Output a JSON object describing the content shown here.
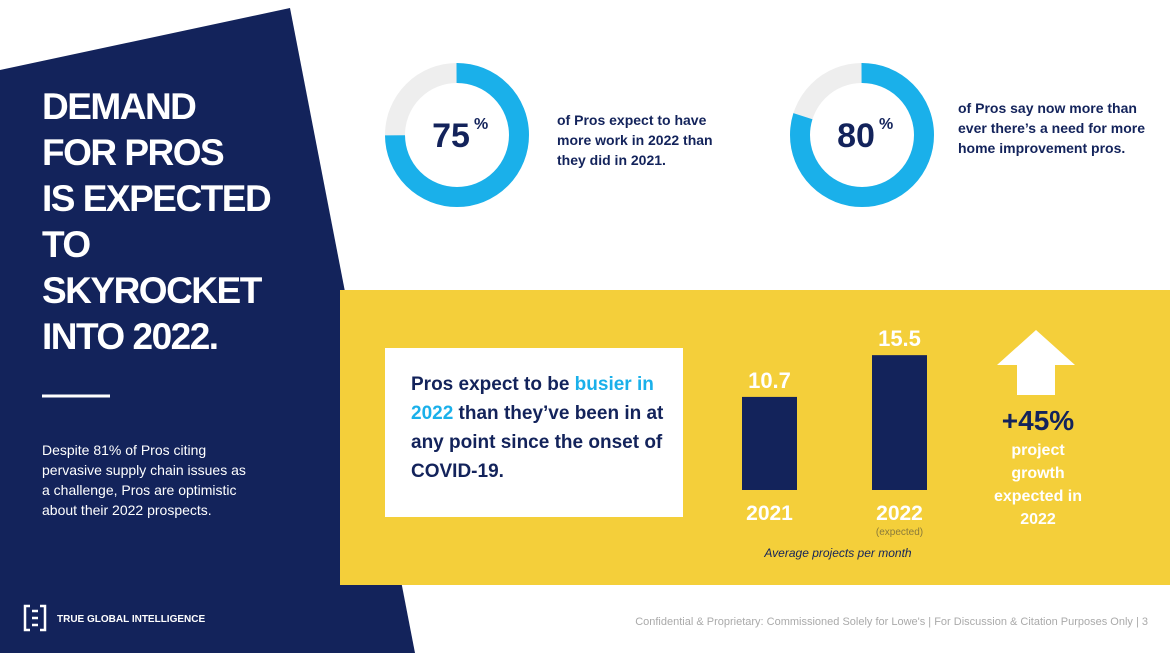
{
  "header": {
    "title_lines": [
      "DEMAND",
      "FOR PROS",
      "IS EXPECTED",
      "TO",
      "SKYROCKET",
      "INTO 2022."
    ],
    "body": "Despite 81% of Pros citing pervasive supply chain issues as a challenge, Pros are optimistic about their 2022 prospects."
  },
  "stats": [
    {
      "value": 75,
      "unit": "%",
      "text": "of Pros expect to have more work in 2022 than they did in 2021."
    },
    {
      "value": 80,
      "unit": "%",
      "text": "of Pros say now more than ever there’s a need for more home improvement pros."
    }
  ],
  "callout": {
    "before": "Pros expect to be ",
    "highlight": "busier in 2022",
    "after": " than they’ve been in at any point since the onset of COVID-19."
  },
  "bar_chart": {
    "bars": [
      {
        "label": "2021",
        "value": 10.7
      },
      {
        "label": "2022",
        "note": "(expected)",
        "value": 15.5
      }
    ],
    "caption": "Average projects per month"
  },
  "growth": {
    "value": "+45%",
    "text": "project growth expected in 2022"
  },
  "footer": {
    "logo": "TRUE GLOBAL INTELLIGENCE",
    "note": "Confidential & Proprietary: Commissioned Solely for Lowe's | For Discussion & Citation Purposes Only | 3"
  }
}
